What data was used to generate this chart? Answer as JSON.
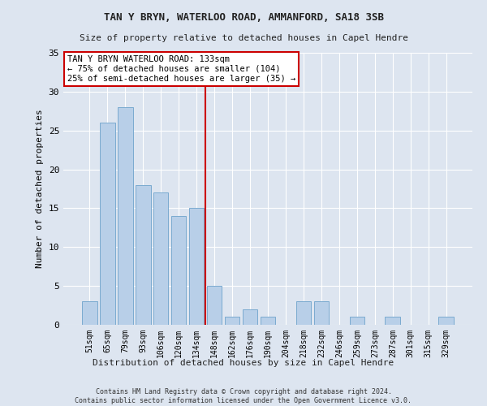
{
  "title1": "TAN Y BRYN, WATERLOO ROAD, AMMANFORD, SA18 3SB",
  "title2": "Size of property relative to detached houses in Capel Hendre",
  "xlabel": "Distribution of detached houses by size in Capel Hendre",
  "ylabel": "Number of detached properties",
  "categories": [
    "51sqm",
    "65sqm",
    "79sqm",
    "93sqm",
    "106sqm",
    "120sqm",
    "134sqm",
    "148sqm",
    "162sqm",
    "176sqm",
    "190sqm",
    "204sqm",
    "218sqm",
    "232sqm",
    "246sqm",
    "259sqm",
    "273sqm",
    "287sqm",
    "301sqm",
    "315sqm",
    "329sqm"
  ],
  "values": [
    3,
    26,
    28,
    18,
    17,
    14,
    15,
    5,
    1,
    2,
    1,
    0,
    3,
    3,
    0,
    1,
    0,
    1,
    0,
    0,
    1
  ],
  "bar_color": "#b8cfe8",
  "bar_edge_color": "#7aaad0",
  "vline_color": "#cc0000",
  "vline_position": 6.5,
  "annotation_text": "TAN Y BRYN WATERLOO ROAD: 133sqm\n← 75% of detached houses are smaller (104)\n25% of semi-detached houses are larger (35) →",
  "annotation_box_color": "#ffffff",
  "annotation_box_edge": "#cc0000",
  "background_color": "#dde5f0",
  "grid_color": "#ffffff",
  "footer": "Contains HM Land Registry data © Crown copyright and database right 2024.\nContains public sector information licensed under the Open Government Licence v3.0.",
  "ylim": [
    0,
    35
  ],
  "yticks": [
    0,
    5,
    10,
    15,
    20,
    25,
    30,
    35
  ]
}
